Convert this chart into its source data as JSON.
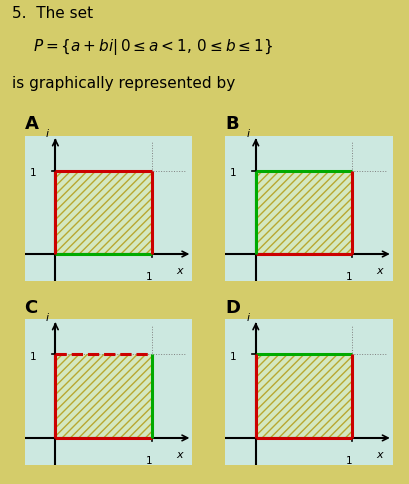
{
  "bg_color": "#d4cc6a",
  "panel_bg": "#cce8e0",
  "hatch_fill_color": "#d4e8c0",
  "hatch_color": "#b8a830",
  "red": "#cc0000",
  "green": "#00aa00",
  "panels": [
    {
      "label": "A",
      "edges": {
        "left": {
          "color": "#cc0000",
          "style": "solid"
        },
        "right": {
          "color": "#cc0000",
          "style": "solid"
        },
        "top": {
          "color": "#cc0000",
          "style": "solid"
        },
        "bottom": {
          "color": "#00aa00",
          "style": "solid"
        }
      }
    },
    {
      "label": "B",
      "edges": {
        "left": {
          "color": "#00aa00",
          "style": "solid"
        },
        "right": {
          "color": "#cc0000",
          "style": "solid"
        },
        "top": {
          "color": "#00aa00",
          "style": "solid"
        },
        "bottom": {
          "color": "#cc0000",
          "style": "solid"
        }
      }
    },
    {
      "label": "C",
      "edges": {
        "left": {
          "color": "#cc0000",
          "style": "solid"
        },
        "right": {
          "color": "#00aa00",
          "style": "solid"
        },
        "top": {
          "color": "#cc0000",
          "style": "dashed"
        },
        "bottom": {
          "color": "#cc0000",
          "style": "solid"
        }
      }
    },
    {
      "label": "D",
      "edges": {
        "left": {
          "color": "#cc0000",
          "style": "solid"
        },
        "right": {
          "color": "#cc0000",
          "style": "solid"
        },
        "top": {
          "color": "#00aa00",
          "style": "solid"
        },
        "bottom": {
          "color": "#cc0000",
          "style": "solid"
        }
      }
    }
  ]
}
